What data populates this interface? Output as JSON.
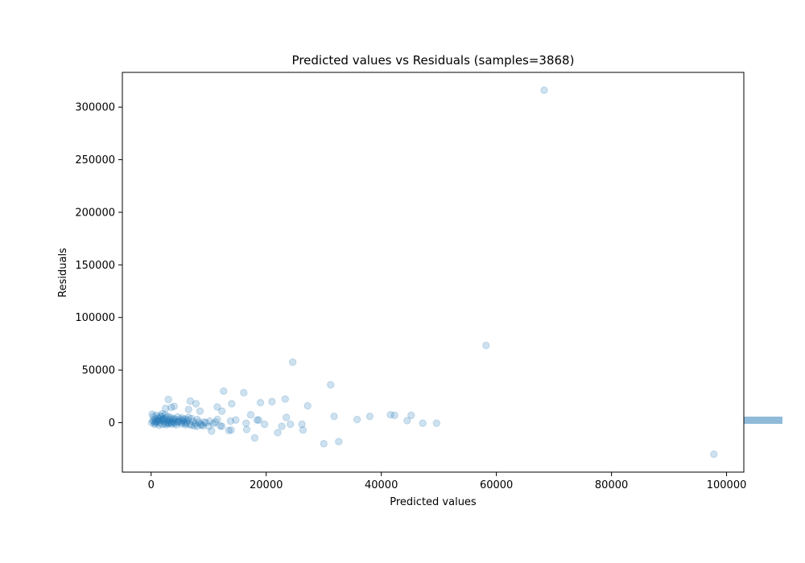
{
  "chart_data": {
    "type": "scatter",
    "title": "Predicted values vs Residuals (samples=3868)",
    "xlabel": "Predicted values",
    "ylabel": "Residuals",
    "xlim": [
      -5000,
      103000
    ],
    "ylim": [
      -47000,
      333000
    ],
    "x_ticks": [
      0,
      20000,
      40000,
      60000,
      80000,
      100000
    ],
    "y_ticks": [
      0,
      50000,
      100000,
      150000,
      200000,
      250000,
      300000
    ],
    "grid": false,
    "legend": "none",
    "marker_color": "#1f77b4",
    "marker_alpha": 0.22,
    "bar_color": "#1f77b4",
    "residual_histogram_value": 0,
    "series": [
      {
        "values": [
          [
            68300,
            316000
          ],
          [
            58200,
            73500
          ],
          [
            97800,
            -30000
          ],
          [
            24600,
            57500
          ],
          [
            31200,
            36000
          ],
          [
            12600,
            30000
          ],
          [
            16100,
            28500
          ],
          [
            3000,
            22000
          ],
          [
            6800,
            20500
          ],
          [
            23300,
            22500
          ],
          [
            21000,
            20000
          ],
          [
            19000,
            19000
          ],
          [
            14000,
            18000
          ],
          [
            7800,
            18000
          ],
          [
            27200,
            16000
          ],
          [
            11500,
            15000
          ],
          [
            4000,
            15500
          ],
          [
            3500,
            14500
          ],
          [
            2500,
            13500
          ],
          [
            8500,
            11000
          ],
          [
            12300,
            11000
          ],
          [
            6500,
            12500
          ],
          [
            17300,
            7500
          ],
          [
            23500,
            5000
          ],
          [
            31800,
            6000
          ],
          [
            35800,
            3000
          ],
          [
            38000,
            6000
          ],
          [
            41600,
            7500
          ],
          [
            42300,
            7000
          ],
          [
            45200,
            7000
          ],
          [
            44500,
            2000
          ],
          [
            47200,
            -500
          ],
          [
            49600,
            -500
          ],
          [
            11500,
            3000
          ],
          [
            14700,
            2500
          ],
          [
            18400,
            2500
          ],
          [
            18700,
            2500
          ],
          [
            13800,
            1500
          ],
          [
            16500,
            -500
          ],
          [
            19700,
            -1500
          ],
          [
            22700,
            -3500
          ],
          [
            24200,
            -1500
          ],
          [
            26200,
            -1500
          ],
          [
            26400,
            -7000
          ],
          [
            22000,
            -9500
          ],
          [
            18000,
            -14500
          ],
          [
            30000,
            -20000
          ],
          [
            32600,
            -18000
          ],
          [
            16600,
            -6500
          ],
          [
            13900,
            -7000
          ],
          [
            13500,
            -7500
          ],
          [
            10500,
            -8000
          ],
          [
            12000,
            -3000
          ],
          [
            12300,
            -3500
          ],
          [
            9500,
            0
          ],
          [
            10000,
            -3500
          ],
          [
            9000,
            -3000
          ],
          [
            8000,
            -3500
          ],
          [
            7500,
            -3000
          ],
          [
            7000,
            -2500
          ],
          [
            6000,
            -2000
          ],
          [
            6500,
            5000
          ],
          [
            7000,
            4000
          ],
          [
            8000,
            3000
          ],
          [
            5000,
            3500
          ],
          [
            5500,
            2500
          ],
          [
            4500,
            1000
          ],
          [
            4000,
            500
          ],
          [
            3500,
            0
          ],
          [
            3000,
            -500
          ],
          [
            2500,
            -1000
          ],
          [
            2000,
            -1500
          ],
          [
            1500,
            -500
          ],
          [
            1000,
            500
          ],
          [
            500,
            1000
          ],
          [
            100,
            0
          ],
          [
            300,
            2000
          ],
          [
            700,
            3500
          ],
          [
            1200,
            4500
          ],
          [
            1800,
            5500
          ],
          [
            2200,
            4000
          ],
          [
            2800,
            2500
          ],
          [
            3200,
            1500
          ],
          [
            3800,
            2500
          ],
          [
            4200,
            3000
          ],
          [
            4800,
            1500
          ],
          [
            5200,
            500
          ],
          [
            5800,
            0
          ],
          [
            6200,
            1000
          ],
          [
            600,
            -1500
          ],
          [
            1400,
            -2500
          ],
          [
            2600,
            -2000
          ],
          [
            3600,
            -1500
          ],
          [
            4400,
            -2000
          ],
          [
            200,
            8000
          ],
          [
            400,
            6000
          ],
          [
            900,
            7000
          ],
          [
            1600,
            6500
          ],
          [
            1900,
            8500
          ],
          [
            2400,
            7500
          ],
          [
            2900,
            6000
          ],
          [
            3400,
            5000
          ],
          [
            3900,
            4000
          ],
          [
            4600,
            5500
          ],
          [
            5400,
            4500
          ],
          [
            5900,
            3500
          ],
          [
            6400,
            2500
          ],
          [
            8600,
            -1500
          ],
          [
            9200,
            500
          ],
          [
            10200,
            1500
          ],
          [
            10800,
            -1000
          ],
          [
            11200,
            500
          ],
          [
            1100,
            2500
          ],
          [
            1300,
            1500
          ],
          [
            1700,
            2000
          ],
          [
            2100,
            3000
          ],
          [
            2300,
            1000
          ],
          [
            2700,
            500
          ],
          [
            3100,
            -1000
          ],
          [
            3300,
            3500
          ],
          [
            700,
            -500
          ],
          [
            800,
            1200
          ],
          [
            1500,
            3800
          ],
          [
            2000,
            2800
          ],
          [
            2600,
            4500
          ],
          [
            3700,
            800
          ],
          [
            4100,
            -800
          ],
          [
            4700,
            300
          ],
          [
            5300,
            -1200
          ],
          [
            5600,
            1800
          ],
          [
            6100,
            -800
          ],
          [
            6700,
            -1500
          ],
          [
            7300,
            1200
          ],
          [
            7700,
            -800
          ],
          [
            8300,
            600
          ],
          [
            8800,
            -2200
          ]
        ]
      }
    ]
  }
}
